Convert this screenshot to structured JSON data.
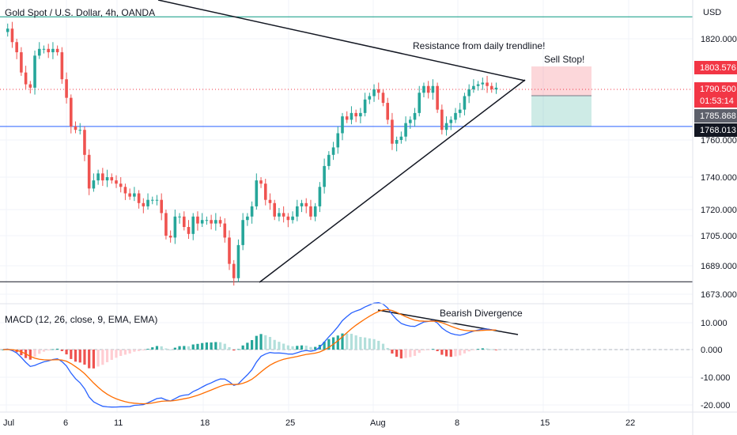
{
  "header": {
    "title": "Gold Spot / U.S. Dollar, 4h, OANDA",
    "currency": "USD"
  },
  "chart_data": [
    {
      "type": "candlestick",
      "title": "Gold Spot / U.S. Dollar, 4h, OANDA",
      "y_unit": "USD",
      "yticks": [
        "1820.000",
        "1760.000",
        "1740.000",
        "1720.000",
        "1705.000",
        "1689.000",
        "1673.000"
      ],
      "xticks": [
        "Jul",
        "6",
        "11",
        "18",
        "25",
        "Aug",
        "8",
        "15",
        "22"
      ],
      "price_labels": [
        {
          "id": "sell_stop",
          "text": "1803.576",
          "value": 1803.576,
          "color": "#f23645"
        },
        {
          "id": "last",
          "text": "1790.500",
          "value": 1790.5,
          "color": "#f23645"
        },
        {
          "id": "countdown",
          "text": "01:53:14",
          "color": "#f23645"
        },
        {
          "id": "target",
          "text": "1785.868",
          "value": 1785.868,
          "color": "#5d606b"
        },
        {
          "id": "level",
          "text": "1768.013",
          "value": 1768.013,
          "color": "#131722"
        }
      ],
      "path": [
        1824,
        1826,
        1818,
        1812,
        1800,
        1793,
        1791,
        1810,
        1814,
        1814,
        1812,
        1814,
        1812,
        1796,
        1785,
        1768,
        1766,
        1766,
        1752,
        1733,
        1738,
        1742,
        1738,
        1740,
        1738,
        1736,
        1734,
        1730,
        1728,
        1730,
        1724,
        1722,
        1726,
        1726,
        1726,
        1718,
        1705,
        1704,
        1716,
        1716,
        1710,
        1706,
        1716,
        1712,
        1714,
        1714,
        1712,
        1714,
        1712,
        1704,
        1690,
        1682,
        1700,
        1714,
        1716,
        1722,
        1738,
        1736,
        1726,
        1724,
        1716,
        1718,
        1716,
        1714,
        1716,
        1722,
        1724,
        1722,
        1716,
        1722,
        1734,
        1746,
        1752,
        1756,
        1764,
        1774,
        1772,
        1776,
        1774,
        1776,
        1784,
        1786,
        1790,
        1788,
        1782,
        1772,
        1758,
        1760,
        1762,
        1770,
        1772,
        1776,
        1788,
        1792,
        1788,
        1792,
        1778,
        1766,
        1770,
        1772,
        1776,
        1778,
        1786,
        1790,
        1792,
        1793,
        1794,
        1792,
        1790,
        1791
      ],
      "series": [
        {
          "name": "Gold Spot / U.S. Dollar",
          "color_up": "#26a69a",
          "color_down": "#ef5350"
        }
      ],
      "levels": [
        {
          "name": "resistance-line",
          "value": 1833,
          "color": "#089981"
        },
        {
          "name": "support-line-1",
          "value": 1768,
          "color": "#2962ff"
        },
        {
          "name": "support-line-2",
          "value": 1680,
          "color": "#131722"
        }
      ],
      "position_box": {
        "entry": 1790,
        "stop": 1803.576,
        "target": 1768.013
      },
      "annotations": [
        {
          "text": "Resistance from daily trendline!"
        },
        {
          "text": "Sell Stop!"
        }
      ]
    },
    {
      "type": "macd",
      "title": "MACD (12, 26, close, 9, EMA, EMA)",
      "yticks": [
        "10.000",
        "0.000",
        "-10.000",
        "-20.000"
      ],
      "macd_color": "#2962ff",
      "signal_color": "#ff6d00",
      "annotation": "Bearish Divergence"
    }
  ]
}
